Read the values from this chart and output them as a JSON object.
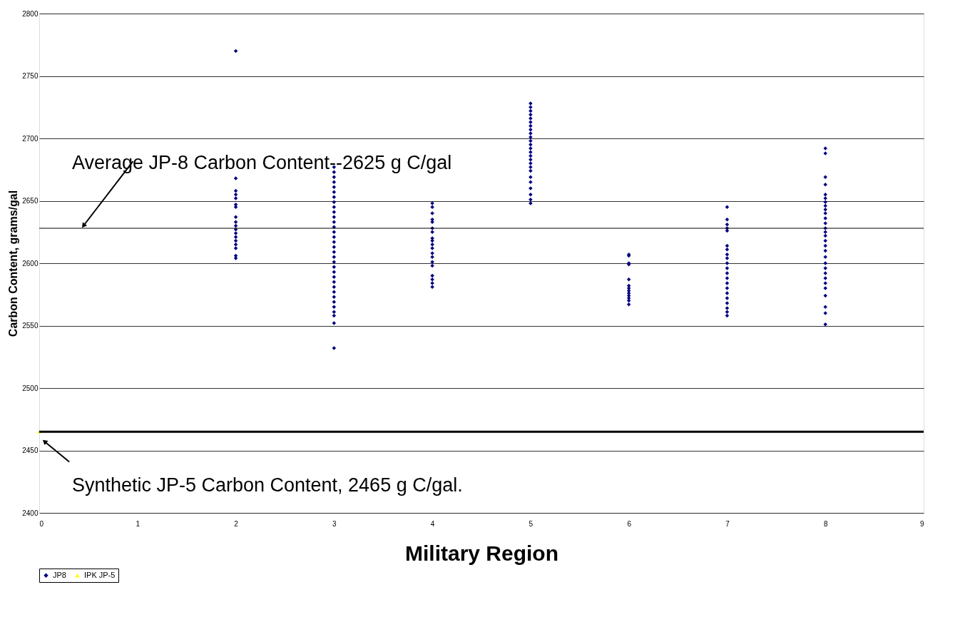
{
  "chart_data": {
    "type": "scatter",
    "xlabel": "Military Region",
    "ylabel": "Carbon Content, grams/gal",
    "xlim": [
      0,
      9
    ],
    "xticks": [
      0,
      1,
      2,
      3,
      4,
      5,
      6,
      7,
      8,
      9
    ],
    "ylim": [
      2400,
      2800
    ],
    "yticks": [
      2400,
      2450,
      2500,
      2550,
      2600,
      2650,
      2700,
      2750,
      2800
    ],
    "grid": "y",
    "legend": "bottom",
    "series": [
      {
        "name": "JP8",
        "color": "#000080",
        "marker": "diamond",
        "x": [
          2,
          2,
          2,
          2,
          2,
          2,
          2,
          2,
          2,
          2,
          2,
          2,
          2,
          2,
          2,
          2,
          2,
          2,
          3,
          3,
          3,
          3,
          3,
          3,
          3,
          3,
          3,
          3,
          3,
          3,
          3,
          3,
          3,
          3,
          3,
          3,
          3,
          3,
          3,
          3,
          3,
          3,
          3,
          3,
          3,
          3,
          3,
          3,
          3,
          3,
          3,
          4,
          4,
          4,
          4,
          4,
          4,
          4,
          4,
          4,
          4,
          4,
          4,
          4,
          4,
          4,
          4,
          4,
          4,
          4,
          5,
          5,
          5,
          5,
          5,
          5,
          5,
          5,
          5,
          5,
          5,
          5,
          5,
          5,
          5,
          5,
          5,
          5,
          5,
          5,
          5,
          5,
          5,
          5,
          5,
          6,
          6,
          6,
          6,
          6,
          6,
          6,
          6,
          6,
          6,
          6,
          6,
          6,
          7,
          7,
          7,
          7,
          7,
          7,
          7,
          7,
          7,
          7,
          7,
          7,
          7,
          7,
          7,
          7,
          7,
          7,
          7,
          7,
          7,
          8,
          8,
          8,
          8,
          8,
          8,
          8,
          8,
          8,
          8,
          8,
          8,
          8,
          8,
          8,
          8,
          8,
          8,
          8,
          8,
          8,
          8,
          8,
          8,
          8,
          8,
          8,
          8,
          8
        ],
        "values": [
          2770,
          2668,
          2658,
          2655,
          2652,
          2647,
          2645,
          2637,
          2633,
          2630,
          2627,
          2624,
          2621,
          2618,
          2615,
          2612,
          2606,
          2604,
          2677,
          2673,
          2669,
          2665,
          2661,
          2657,
          2653,
          2649,
          2645,
          2641,
          2637,
          2633,
          2629,
          2625,
          2621,
          2617,
          2613,
          2609,
          2605,
          2601,
          2597,
          2593,
          2589,
          2585,
          2581,
          2577,
          2573,
          2569,
          2565,
          2561,
          2558,
          2552,
          2532,
          2648,
          2645,
          2640,
          2635,
          2633,
          2628,
          2625,
          2620,
          2618,
          2615,
          2612,
          2608,
          2605,
          2601,
          2598,
          2590,
          2587,
          2584,
          2581,
          2728,
          2725,
          2722,
          2719,
          2716,
          2713,
          2710,
          2707,
          2704,
          2701,
          2698,
          2695,
          2692,
          2689,
          2686,
          2683,
          2680,
          2677,
          2674,
          2669,
          2665,
          2660,
          2655,
          2651,
          2648,
          2607,
          2606,
          2600,
          2599,
          2587,
          2582,
          2580,
          2578,
          2576,
          2574,
          2572,
          2570,
          2567,
          2645,
          2635,
          2631,
          2628,
          2626,
          2614,
          2611,
          2607,
          2604,
          2600,
          2596,
          2592,
          2588,
          2584,
          2580,
          2576,
          2572,
          2568,
          2564,
          2561,
          2558,
          2692,
          2688,
          2669,
          2663,
          2655,
          2652,
          2649,
          2646,
          2643,
          2640,
          2636,
          2632,
          2628,
          2625,
          2622,
          2618,
          2614,
          2610,
          2605,
          2600,
          2596,
          2592,
          2588,
          2584,
          2580,
          2574,
          2565,
          2560,
          2551
        ]
      },
      {
        "name": "IPK JP-5",
        "color": "#ffff00",
        "marker": "triangle",
        "x": [
          0
        ],
        "values": [
          2465
        ]
      }
    ],
    "ref_lines": [
      {
        "axis": "y",
        "value": 2628,
        "label": "Average JP-8 Carbon Content--2625 g C/gal",
        "color": "#000000"
      },
      {
        "axis": "y",
        "value": 2465,
        "label": "Synthetic JP-5 Carbon Content, 2465  g C/gal.",
        "color": "#000000"
      }
    ]
  }
}
